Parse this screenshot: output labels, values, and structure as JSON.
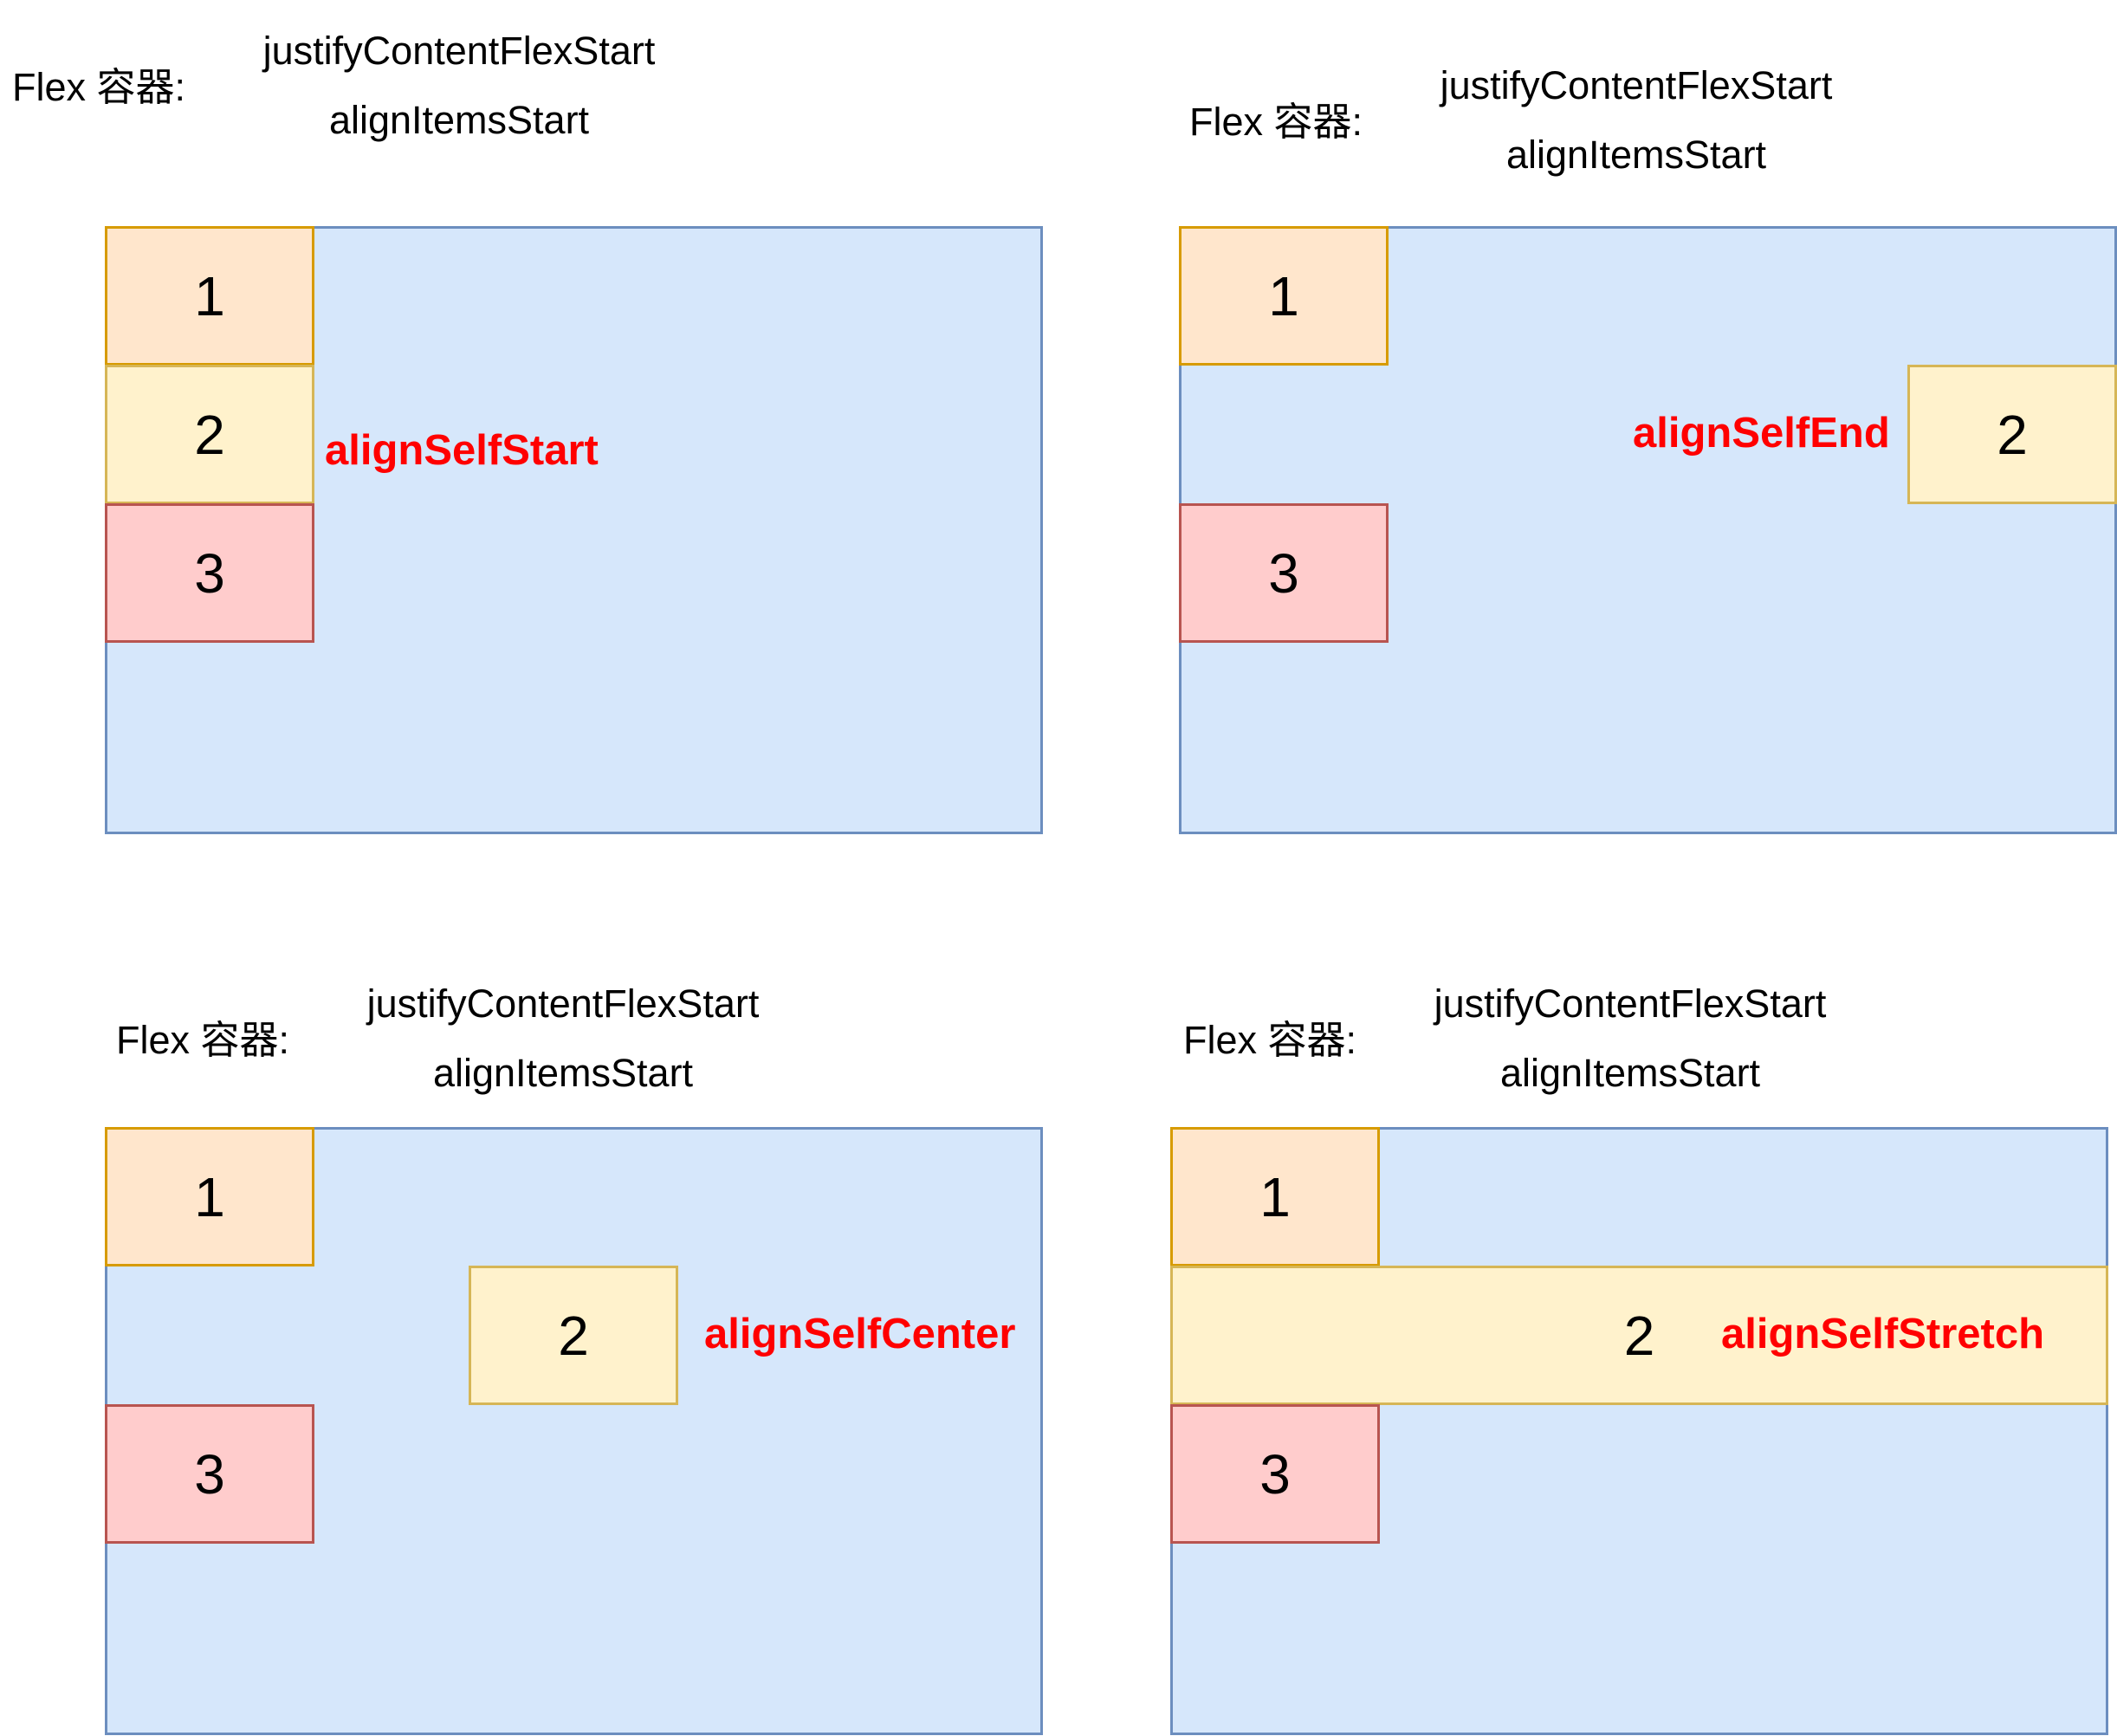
{
  "panels": [
    {
      "container_label": "Flex 容器:",
      "justify": "justifyContentFlexStart",
      "align_items": "alignItemsStart",
      "items": [
        "1",
        "2",
        "3"
      ],
      "annotation": "alignSelfStart"
    },
    {
      "container_label": "Flex 容器:",
      "justify": "justifyContentFlexStart",
      "align_items": "alignItemsStart",
      "items": [
        "1",
        "2",
        "3"
      ],
      "annotation": "alignSelfEnd"
    },
    {
      "container_label": "Flex 容器:",
      "justify": "justifyContentFlexStart",
      "align_items": "alignItemsStart",
      "items": [
        "1",
        "2",
        "3"
      ],
      "annotation": "alignSelfCenter"
    },
    {
      "container_label": "Flex 容器:",
      "justify": "justifyContentFlexStart",
      "align_items": "alignItemsStart",
      "items": [
        "1",
        "2",
        "3"
      ],
      "annotation": "alignSelfStretch"
    }
  ],
  "colors": {
    "container_fill": "#d6e7fb",
    "container_border": "#6c8ebf",
    "item1_fill": "#ffe6cc",
    "item1_border": "#d79b00",
    "item2_fill": "#fff2cc",
    "item2_border": "#d6b656",
    "item3_fill": "#ffcccc",
    "item3_border": "#b85450",
    "annotation": "#ff0000"
  }
}
